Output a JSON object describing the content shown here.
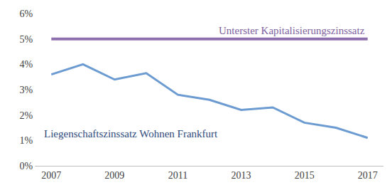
{
  "chart_data": {
    "type": "line",
    "x": [
      2007,
      2008,
      2009,
      2010,
      2011,
      2012,
      2013,
      2014,
      2015,
      2016,
      2017
    ],
    "series": [
      {
        "name": "Unterster Kapitalisierungszinssatz",
        "color": "#8e6fae",
        "values": [
          5,
          5,
          5,
          5,
          5,
          5,
          5,
          5,
          5,
          5,
          5
        ]
      },
      {
        "name": "Liegenschaftszinssatz Wohnen Frankfurt",
        "color": "#6b9bd1",
        "values": [
          3.6,
          4.0,
          3.4,
          3.65,
          2.8,
          2.6,
          2.2,
          2.3,
          1.7,
          1.5,
          1.1
        ]
      }
    ],
    "xlim": [
      2006.5,
      2017.5
    ],
    "xticks": [
      2007,
      2009,
      2011,
      2013,
      2015,
      2017
    ],
    "ylim": [
      0,
      6
    ],
    "yticks": [
      {
        "value": 0,
        "label": "0%"
      },
      {
        "value": 1,
        "label": "1%"
      },
      {
        "value": 2,
        "label": "2%"
      },
      {
        "value": 3,
        "label": "3%"
      },
      {
        "value": 4,
        "label": "4%"
      },
      {
        "value": 5,
        "label": "5%"
      },
      {
        "value": 6,
        "label": "6%"
      }
    ],
    "grid": false
  }
}
